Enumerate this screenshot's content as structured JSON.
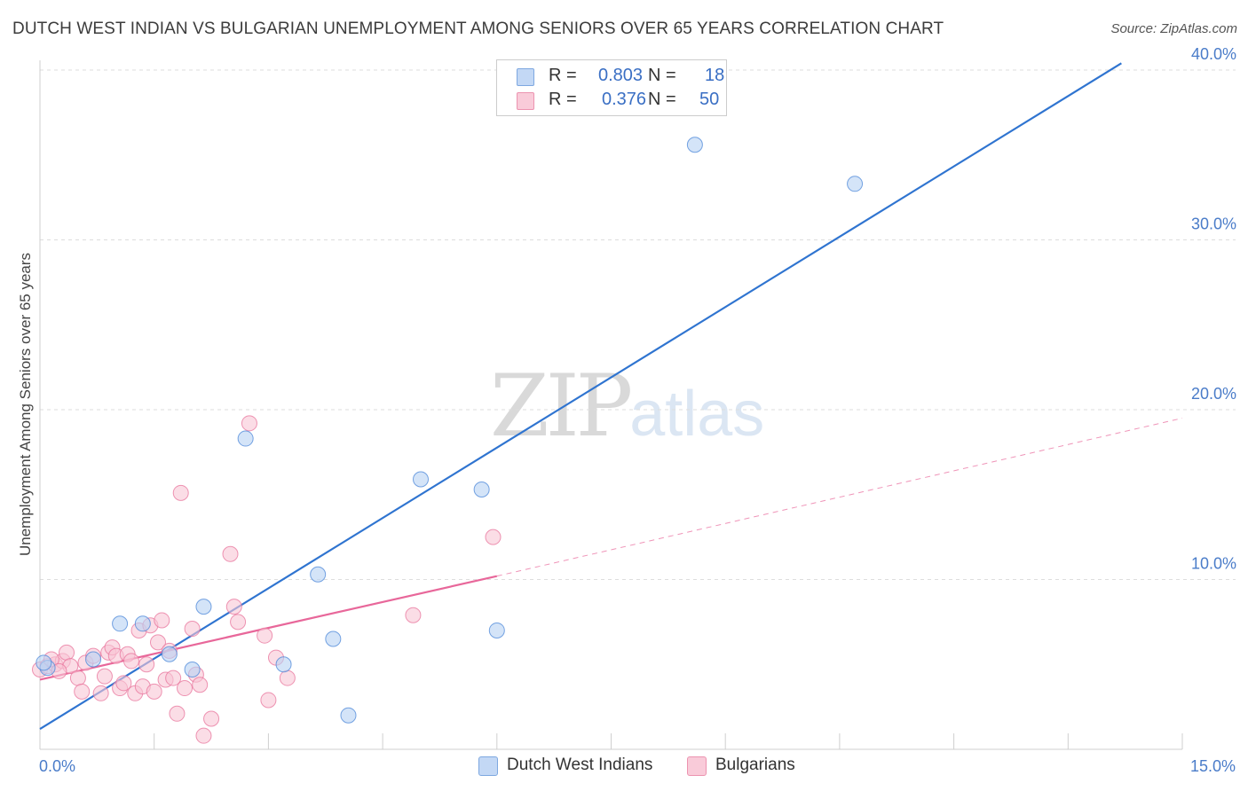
{
  "header": {
    "title": "DUTCH WEST INDIAN VS BULGARIAN UNEMPLOYMENT AMONG SENIORS OVER 65 YEARS CORRELATION CHART",
    "source": "Source: ZipAtlas.com"
  },
  "watermark": {
    "zip": "ZIP",
    "atlas": "atlas"
  },
  "legend": {
    "rows": [
      {
        "r_label": "R =",
        "r_value": "0.803",
        "n_label": "N =",
        "n_value": "18",
        "color": "#a9c8f0"
      },
      {
        "r_label": "R =",
        "r_value": "0.376",
        "n_label": "N =",
        "n_value": "50",
        "color": "#f7b8cb"
      }
    ]
  },
  "bottom_legend": [
    {
      "label": "Dutch West Indians",
      "color": "#a9c8f0"
    },
    {
      "label": "Bulgarians",
      "color": "#f7b8cb"
    }
  ],
  "chart_data": {
    "type": "scatter",
    "title": "DUTCH WEST INDIAN VS BULGARIAN UNEMPLOYMENT AMONG SENIORS OVER 65 YEARS CORRELATION CHART",
    "xlabel": "",
    "ylabel": "Unemployment Among Seniors over 65 years",
    "xlim": [
      0,
      15
    ],
    "ylim": [
      0,
      40
    ],
    "x_tick_labels": [
      "0.0%",
      "15.0%"
    ],
    "y_tick_values": [
      10,
      20,
      30,
      40
    ],
    "y_tick_labels": [
      "10.0%",
      "20.0%",
      "30.0%",
      "40.0%"
    ],
    "grid": true,
    "series": [
      {
        "name": "Dutch West Indians",
        "color": "#4a86d8",
        "fill": "#b8d2f3",
        "line_color": "#2f74d0",
        "trend": {
          "x": [
            0,
            14.2
          ],
          "y": [
            1.2,
            40.4
          ]
        },
        "points": [
          [
            0.1,
            4.8
          ],
          [
            0.7,
            5.3
          ],
          [
            1.05,
            7.4
          ],
          [
            1.35,
            7.4
          ],
          [
            1.7,
            5.6
          ],
          [
            2.0,
            4.7
          ],
          [
            2.15,
            8.4
          ],
          [
            2.7,
            18.3
          ],
          [
            3.2,
            5.0
          ],
          [
            3.65,
            10.3
          ],
          [
            3.85,
            6.5
          ],
          [
            4.05,
            2.0
          ],
          [
            5.0,
            15.9
          ],
          [
            5.8,
            15.3
          ],
          [
            6.0,
            7.0
          ],
          [
            8.6,
            35.6
          ],
          [
            10.7,
            33.3
          ],
          [
            0.05,
            5.1
          ]
        ]
      },
      {
        "name": "Bulgarians",
        "color": "#e8739b",
        "fill": "#f9c6d5",
        "line_color": "#e8679a",
        "trend": {
          "x": [
            0,
            6.0
          ],
          "y": [
            4.1,
            10.2
          ]
        },
        "trend_extended": {
          "x": [
            6.0,
            15.0
          ],
          "y": [
            10.2,
            19.5
          ]
        },
        "points": [
          [
            0.0,
            4.7
          ],
          [
            0.1,
            4.9
          ],
          [
            0.2,
            5.0
          ],
          [
            0.3,
            5.2
          ],
          [
            0.35,
            5.7
          ],
          [
            0.4,
            4.9
          ],
          [
            0.5,
            4.2
          ],
          [
            0.55,
            3.4
          ],
          [
            0.6,
            5.1
          ],
          [
            0.7,
            5.5
          ],
          [
            0.8,
            3.3
          ],
          [
            0.85,
            4.3
          ],
          [
            0.9,
            5.7
          ],
          [
            0.95,
            6.0
          ],
          [
            1.0,
            5.5
          ],
          [
            1.05,
            3.6
          ],
          [
            1.1,
            3.9
          ],
          [
            1.15,
            5.6
          ],
          [
            1.2,
            5.2
          ],
          [
            1.25,
            3.3
          ],
          [
            1.3,
            7.0
          ],
          [
            1.35,
            3.7
          ],
          [
            1.4,
            5.0
          ],
          [
            1.45,
            7.3
          ],
          [
            1.5,
            3.4
          ],
          [
            1.55,
            6.3
          ],
          [
            1.6,
            7.6
          ],
          [
            1.65,
            4.1
          ],
          [
            1.7,
            5.8
          ],
          [
            1.75,
            4.2
          ],
          [
            1.8,
            2.1
          ],
          [
            1.85,
            15.1
          ],
          [
            1.9,
            3.6
          ],
          [
            2.0,
            7.1
          ],
          [
            2.05,
            4.4
          ],
          [
            2.1,
            3.8
          ],
          [
            2.15,
            0.8
          ],
          [
            2.25,
            1.8
          ],
          [
            2.5,
            11.5
          ],
          [
            2.55,
            8.4
          ],
          [
            2.6,
            7.5
          ],
          [
            2.75,
            19.2
          ],
          [
            2.95,
            6.7
          ],
          [
            3.0,
            2.9
          ],
          [
            3.1,
            5.4
          ],
          [
            3.25,
            4.2
          ],
          [
            4.9,
            7.9
          ],
          [
            5.95,
            12.5
          ],
          [
            0.15,
            5.3
          ],
          [
            0.25,
            4.6
          ]
        ]
      }
    ]
  }
}
